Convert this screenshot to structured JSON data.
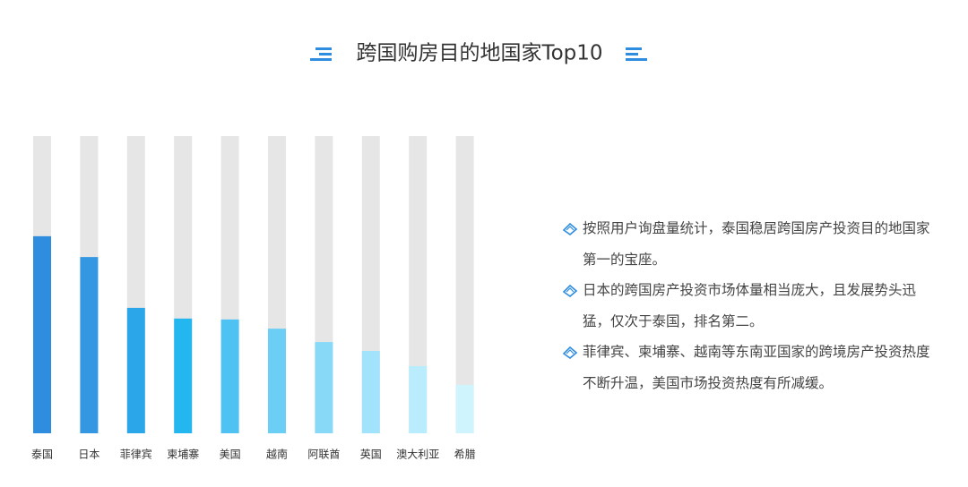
{
  "chart_data": {
    "type": "bar",
    "title": "跨国购房目的地国家Top10",
    "categories": [
      "泰国",
      "日本",
      "菲律宾",
      "柬埔寨",
      "美国",
      "越南",
      "阿联酋",
      "英国",
      "澳大利亚",
      "希腊"
    ],
    "values": [
      66.3,
      59.3,
      42.2,
      38.6,
      38.3,
      35.2,
      30.7,
      27.7,
      22.6,
      16.3
    ],
    "colors": [
      "#2f8de0",
      "#3497e2",
      "#2aa6e9",
      "#24b6ef",
      "#4ec3f3",
      "#6bcef5",
      "#88d9f8",
      "#a0e3fa",
      "#b9ecfc",
      "#d0f4fd"
    ],
    "ylim": [
      0,
      100
    ]
  },
  "notes": [
    "按照用户询盘量统计，泰国稳居跨国房产投资目的地国家第一的宝座。",
    "日本的跨国房产投资市场体量相当庞大，且发展势头迅猛，仅次于泰国，排名第二。",
    "菲律宾、柬埔寨、越南等东南亚国家的跨境房产投资热度不断升温，美国市场投资热度有所减缓。"
  ]
}
